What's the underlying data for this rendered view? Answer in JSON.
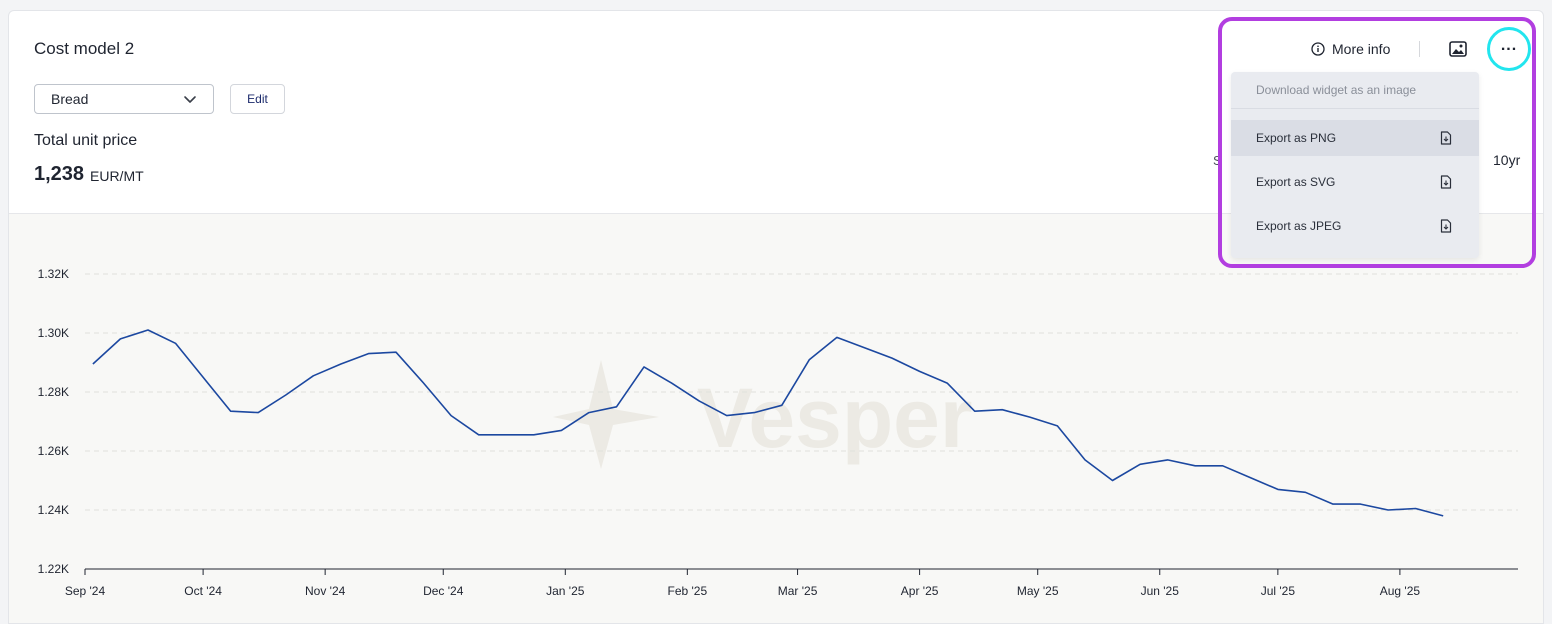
{
  "widget": {
    "title": "Cost model 2",
    "product_select": {
      "value": "Bread"
    },
    "edit_label": "Edit",
    "metric": {
      "label": "Total unit price",
      "value": "1,238",
      "unit": "EUR/MT"
    },
    "range": {
      "partial_label": "S",
      "ten_year_label": "10yr"
    }
  },
  "toolbar": {
    "more_info_label": "More info",
    "icons": {
      "info": "info-icon",
      "image": "image-icon",
      "more": "more-dots-icon"
    }
  },
  "menu": {
    "header": "Download widget as an image",
    "items": [
      {
        "label": "Export as PNG",
        "active": true
      },
      {
        "label": "Export as SVG",
        "active": false
      },
      {
        "label": "Export as JPEG",
        "active": false
      }
    ]
  },
  "watermark": "Vesper",
  "colors": {
    "line": "#1c48a0",
    "highlight": "#b23ee0",
    "focus_ring": "#22e5ee",
    "accent_text": "#1b2a6b"
  },
  "chart_data": {
    "type": "line",
    "ylim": [
      1220,
      1320
    ],
    "y_ticks": [
      1220,
      1240,
      1260,
      1280,
      1300,
      1320
    ],
    "y_tick_labels": [
      "1.22K",
      "1.24K",
      "1.26K",
      "1.28K",
      "1.30K",
      "1.32K"
    ],
    "x_tick_labels": [
      "Sep '24",
      "Oct '24",
      "Nov '24",
      "Dec '24",
      "Jan '25",
      "Feb '25",
      "Mar '25",
      "Apr '25",
      "May '25",
      "Jun '25",
      "Jul '25",
      "Aug '25"
    ],
    "x_ticks": [
      "2024-09-01",
      "2024-10-01",
      "2024-11-01",
      "2024-12-01",
      "2025-01-01",
      "2025-02-01",
      "2025-03-01",
      "2025-04-01",
      "2025-05-01",
      "2025-06-01",
      "2025-07-01",
      "2025-08-01"
    ],
    "x_range": [
      "2024-09-01",
      "2025-08-31"
    ],
    "grid": "horizontal dashed",
    "series": [
      {
        "x": [
          "2024-09-03",
          "2024-09-10",
          "2024-09-17",
          "2024-09-24",
          "2024-10-01",
          "2024-10-08",
          "2024-10-15",
          "2024-10-22",
          "2024-10-29",
          "2024-11-05",
          "2024-11-12",
          "2024-11-19",
          "2024-11-26",
          "2024-12-03",
          "2024-12-10",
          "2024-12-17",
          "2024-12-24",
          "2024-12-31",
          "2025-01-07",
          "2025-01-14",
          "2025-01-21",
          "2025-01-28",
          "2025-02-04",
          "2025-02-11",
          "2025-02-18",
          "2025-02-25",
          "2025-03-04",
          "2025-03-11",
          "2025-03-18",
          "2025-03-25",
          "2025-04-01",
          "2025-04-08",
          "2025-04-15",
          "2025-04-22",
          "2025-04-29",
          "2025-05-06",
          "2025-05-13",
          "2025-05-20",
          "2025-05-27",
          "2025-06-03",
          "2025-06-10",
          "2025-06-17",
          "2025-06-24",
          "2025-07-01",
          "2025-07-08",
          "2025-07-15",
          "2025-07-22",
          "2025-07-29",
          "2025-08-05",
          "2025-08-12"
        ],
        "y": [
          1289.5,
          1298,
          1301,
          1296.5,
          1285,
          1273.5,
          1273,
          1279,
          1285.5,
          1289.5,
          1293,
          1293.5,
          1283,
          1272,
          1265.5,
          1265.5,
          1265.5,
          1267,
          1273,
          1275,
          1288.5,
          1283,
          1277,
          1272,
          1273,
          1275.5,
          1291,
          1298.5,
          1295,
          1291.5,
          1287,
          1283,
          1273.5,
          1274,
          1271.5,
          1268.5,
          1257,
          1250,
          1255.5,
          1257,
          1255,
          1255,
          1251,
          1247,
          1246,
          1242,
          1242,
          1240,
          1240.5,
          1238
        ]
      }
    ]
  }
}
